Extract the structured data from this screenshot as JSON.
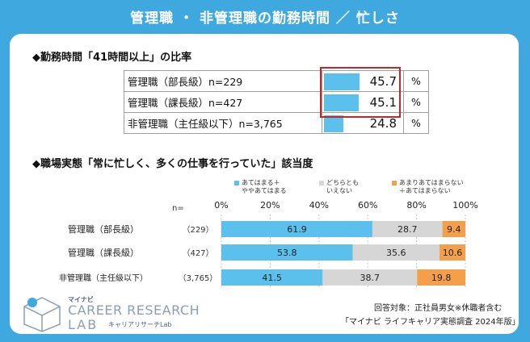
{
  "header": {
    "title": "管理職 ・ 非管理職の勤務時間 ／ 忙しさ"
  },
  "section1": {
    "title": "◆勤務時間「41時間以上」の比率",
    "unit": "%",
    "rows": [
      {
        "label": "管理職（部長級）n=229",
        "value": "45.7",
        "pct": 45.7
      },
      {
        "label": "管理職（課長級）n=427",
        "value": "45.1",
        "pct": 45.1
      },
      {
        "label": "非管理職（主任級以下）n=3,765",
        "value": "24.8",
        "pct": 24.8
      }
    ]
  },
  "section2": {
    "title": "◆職場実態「常に忙しく、多くの仕事を行っていた」該当度",
    "n_label": "n="
  },
  "colors": {
    "blue": "#5bc1ec",
    "gray": "#d6d6d6",
    "orange": "#f4a04a",
    "red": "#c0282e"
  },
  "chart_data": {
    "type": "bar",
    "orientation": "horizontal",
    "stacked": true,
    "title": "職場実態「常に忙しく、多くの仕事を行っていた」該当度",
    "categories": [
      "管理職（部長級）",
      "管理職（課長級）",
      "非管理職（主任級以下）"
    ],
    "n": [
      "（229）",
      "（427）",
      "（3,765）"
    ],
    "series": [
      {
        "name": "あてはまる＋ややあてはまる",
        "legend_lines": [
          "あてはまる＋",
          "ややあてはまる"
        ],
        "values": [
          61.9,
          53.8,
          41.5
        ]
      },
      {
        "name": "どちらともいえない",
        "legend_lines": [
          "どちらとも",
          "いえない"
        ],
        "values": [
          28.7,
          35.6,
          38.7
        ]
      },
      {
        "name": "あまりあてはまらない＋あてはまらない",
        "legend_lines": [
          "あまりあてはまらない",
          "＋あてはまらない"
        ],
        "values": [
          9.4,
          10.6,
          19.8
        ]
      }
    ],
    "xlim": [
      0,
      100
    ],
    "ticks": [
      "0%",
      "20%",
      "40%",
      "60%",
      "80%",
      "100%"
    ],
    "grid": true
  },
  "footer": {
    "note1": "回答対象：正社員男女※休職者含む",
    "note2": "「マイナビ ライフキャリア実態調査 2024年版」"
  },
  "logo": {
    "brand": "マイナビ",
    "line1": "CAREER RESEARCH",
    "line2": "LAB",
    "line3": "キャリアリサーチLab"
  }
}
